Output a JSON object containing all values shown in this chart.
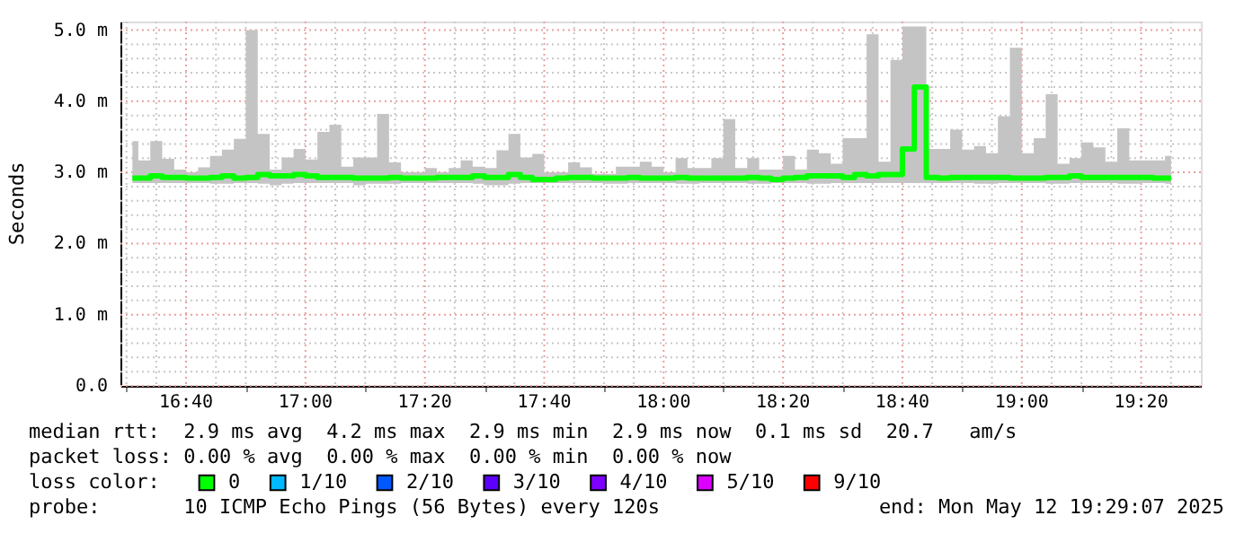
{
  "chart_data": {
    "type": "step",
    "ylabel": "Seconds",
    "x": [
      "2025-05-12T16:31",
      "2025-05-12T16:33",
      "2025-05-12T16:35",
      "2025-05-12T16:37",
      "2025-05-12T16:39",
      "2025-05-12T16:41",
      "2025-05-12T16:43",
      "2025-05-12T16:45",
      "2025-05-12T16:47",
      "2025-05-12T16:49",
      "2025-05-12T16:51",
      "2025-05-12T16:53",
      "2025-05-12T16:55",
      "2025-05-12T16:57",
      "2025-05-12T16:59",
      "2025-05-12T17:01",
      "2025-05-12T17:03",
      "2025-05-12T17:05",
      "2025-05-12T17:07",
      "2025-05-12T17:09",
      "2025-05-12T17:11",
      "2025-05-12T17:13",
      "2025-05-12T17:15",
      "2025-05-12T17:17",
      "2025-05-12T17:19",
      "2025-05-12T17:21",
      "2025-05-12T17:23",
      "2025-05-12T17:25",
      "2025-05-12T17:27",
      "2025-05-12T17:29",
      "2025-05-12T17:31",
      "2025-05-12T17:33",
      "2025-05-12T17:35",
      "2025-05-12T17:37",
      "2025-05-12T17:39",
      "2025-05-12T17:41",
      "2025-05-12T17:43",
      "2025-05-12T17:45",
      "2025-05-12T17:47",
      "2025-05-12T17:49",
      "2025-05-12T17:51",
      "2025-05-12T17:53",
      "2025-05-12T17:55",
      "2025-05-12T17:57",
      "2025-05-12T17:59",
      "2025-05-12T18:01",
      "2025-05-12T18:03",
      "2025-05-12T18:05",
      "2025-05-12T18:07",
      "2025-05-12T18:09",
      "2025-05-12T18:11",
      "2025-05-12T18:13",
      "2025-05-12T18:15",
      "2025-05-12T18:17",
      "2025-05-12T18:19",
      "2025-05-12T18:21",
      "2025-05-12T18:23",
      "2025-05-12T18:25",
      "2025-05-12T18:27",
      "2025-05-12T18:29",
      "2025-05-12T18:31",
      "2025-05-12T18:33",
      "2025-05-12T18:35",
      "2025-05-12T18:37",
      "2025-05-12T18:39",
      "2025-05-12T18:41",
      "2025-05-12T18:43",
      "2025-05-12T18:45",
      "2025-05-12T18:47",
      "2025-05-12T18:49",
      "2025-05-12T18:51",
      "2025-05-12T18:53",
      "2025-05-12T18:55",
      "2025-05-12T18:57",
      "2025-05-12T18:59",
      "2025-05-12T19:01",
      "2025-05-12T19:03",
      "2025-05-12T19:05",
      "2025-05-12T19:07",
      "2025-05-12T19:09",
      "2025-05-12T19:11",
      "2025-05-12T19:13",
      "2025-05-12T19:15",
      "2025-05-12T19:17",
      "2025-05-12T19:19",
      "2025-05-12T19:21",
      "2025-05-12T19:23",
      "2025-05-12T19:25"
    ],
    "series": [
      {
        "name": "0",
        "color": "#00ff00",
        "values": [
          2.92,
          2.92,
          2.95,
          2.93,
          2.93,
          2.92,
          2.92,
          2.93,
          2.95,
          2.92,
          2.93,
          2.97,
          2.95,
          2.95,
          2.97,
          2.95,
          2.93,
          2.93,
          2.93,
          2.92,
          2.92,
          2.92,
          2.93,
          2.92,
          2.92,
          2.92,
          2.93,
          2.93,
          2.93,
          2.95,
          2.93,
          2.93,
          2.97,
          2.93,
          2.9,
          2.9,
          2.92,
          2.93,
          2.93,
          2.92,
          2.92,
          2.92,
          2.93,
          2.92,
          2.92,
          2.92,
          2.93,
          2.92,
          2.92,
          2.92,
          2.92,
          2.92,
          2.93,
          2.92,
          2.9,
          2.92,
          2.93,
          2.95,
          2.95,
          2.95,
          2.93,
          2.97,
          2.95,
          2.97,
          2.97,
          3.33,
          4.2,
          2.93,
          2.92,
          2.93,
          2.93,
          2.93,
          2.93,
          2.93,
          2.92,
          2.92,
          2.92,
          2.93,
          2.93,
          2.95,
          2.93,
          2.93,
          2.93,
          2.93,
          2.93,
          2.93,
          2.92,
          2.92
        ],
        "lower": [
          2.85,
          2.85,
          2.85,
          2.85,
          2.85,
          2.85,
          2.85,
          2.84,
          2.84,
          2.85,
          2.85,
          2.84,
          2.82,
          2.84,
          2.85,
          2.85,
          2.85,
          2.85,
          2.85,
          2.82,
          2.84,
          2.84,
          2.84,
          2.85,
          2.85,
          2.85,
          2.85,
          2.85,
          2.85,
          2.84,
          2.82,
          2.82,
          2.84,
          2.85,
          2.85,
          2.85,
          2.85,
          2.85,
          2.85,
          2.85,
          2.84,
          2.84,
          2.85,
          2.85,
          2.85,
          2.85,
          2.84,
          2.84,
          2.85,
          2.85,
          2.85,
          2.85,
          2.84,
          2.84,
          2.85,
          2.85,
          2.85,
          2.84,
          2.84,
          2.85,
          2.85,
          2.85,
          2.85,
          2.85,
          2.85,
          2.85,
          2.85,
          2.85,
          2.85,
          2.85,
          2.85,
          2.84,
          2.84,
          2.85,
          2.85,
          2.85,
          2.85,
          2.84,
          2.84,
          2.85,
          2.85,
          2.85,
          2.85,
          2.84,
          2.84,
          2.85,
          2.85,
          2.84
        ],
        "upper": [
          3.44,
          3.17,
          3.44,
          3.19,
          3.04,
          3.0,
          3.07,
          3.23,
          3.32,
          3.47,
          5.0,
          3.54,
          3.04,
          3.21,
          3.33,
          3.18,
          3.57,
          3.67,
          3.08,
          3.21,
          3.21,
          3.82,
          3.14,
          3.0,
          3.0,
          3.06,
          3.0,
          3.06,
          3.17,
          3.08,
          3.06,
          3.31,
          3.54,
          3.21,
          3.26,
          3.0,
          3.0,
          3.14,
          3.07,
          2.98,
          2.98,
          3.08,
          3.08,
          3.15,
          3.08,
          3.0,
          3.2,
          3.06,
          3.06,
          3.2,
          3.75,
          3.06,
          3.2,
          3.04,
          3.04,
          3.23,
          3.04,
          3.32,
          3.27,
          3.12,
          3.48,
          3.48,
          4.94,
          3.15,
          4.58,
          5.05,
          5.05,
          3.33,
          3.33,
          3.6,
          3.32,
          3.37,
          3.27,
          3.79,
          4.75,
          3.27,
          3.48,
          4.1,
          3.12,
          3.2,
          3.42,
          3.35,
          3.15,
          3.62,
          3.17,
          3.17,
          3.17,
          3.23
        ]
      },
      {
        "name": "1/10",
        "color": "#00b8ff",
        "values": [
          null,
          null,
          null,
          null,
          null,
          null,
          null,
          null,
          null,
          null,
          null,
          null,
          null,
          null,
          null,
          null,
          null,
          null,
          null,
          null,
          null,
          null,
          null,
          null,
          null,
          null,
          null,
          null,
          null,
          null,
          null,
          null,
          null,
          null,
          null,
          null,
          null,
          null,
          null,
          null,
          null,
          null,
          null,
          null,
          null,
          null,
          null,
          null,
          null,
          null,
          null,
          null,
          null,
          null,
          null,
          null,
          null,
          null,
          null,
          null,
          null,
          null,
          null,
          null,
          null,
          null,
          null,
          null,
          null,
          null,
          null,
          null,
          null,
          null,
          null,
          null,
          null,
          null,
          null,
          null,
          null,
          null,
          null,
          null,
          null,
          null,
          null,
          null
        ]
      },
      {
        "name": "2/10",
        "color": "#0059ff",
        "values": [
          null,
          null,
          null,
          null,
          null,
          null,
          null,
          null,
          null,
          null,
          null,
          null,
          null,
          null,
          null,
          null,
          null,
          null,
          null,
          null,
          null,
          null,
          null,
          null,
          null,
          null,
          null,
          null,
          null,
          null,
          null,
          null,
          null,
          null,
          null,
          null,
          null,
          null,
          null,
          null,
          null,
          null,
          null,
          null,
          null,
          null,
          null,
          null,
          null,
          null,
          null,
          null,
          null,
          null,
          null,
          null,
          null,
          null,
          null,
          null,
          null,
          null,
          null,
          null,
          null,
          null,
          null,
          null,
          null,
          null,
          null,
          null,
          null,
          null,
          null,
          null,
          null,
          null,
          null,
          null,
          null,
          null,
          null,
          null,
          null,
          null,
          null,
          null
        ]
      },
      {
        "name": "3/10",
        "color": "#5e00ff",
        "values": [
          null,
          null,
          null,
          null,
          null,
          null,
          null,
          null,
          null,
          null,
          null,
          null,
          null,
          null,
          null,
          null,
          null,
          null,
          null,
          null,
          null,
          null,
          null,
          null,
          null,
          null,
          null,
          null,
          null,
          null,
          null,
          null,
          null,
          null,
          null,
          null,
          null,
          null,
          null,
          null,
          null,
          null,
          null,
          null,
          null,
          null,
          null,
          null,
          null,
          null,
          null,
          null,
          null,
          null,
          null,
          null,
          null,
          null,
          null,
          null,
          null,
          null,
          null,
          null,
          null,
          null,
          null,
          null,
          null,
          null,
          null,
          null,
          null,
          null,
          null,
          null,
          null,
          null,
          null,
          null,
          null,
          null,
          null,
          null,
          null,
          null,
          null,
          null
        ]
      },
      {
        "name": "4/10",
        "color": "#7e00ff",
        "values": [
          null,
          null,
          null,
          null,
          null,
          null,
          null,
          null,
          null,
          null,
          null,
          null,
          null,
          null,
          null,
          null,
          null,
          null,
          null,
          null,
          null,
          null,
          null,
          null,
          null,
          null,
          null,
          null,
          null,
          null,
          null,
          null,
          null,
          null,
          null,
          null,
          null,
          null,
          null,
          null,
          null,
          null,
          null,
          null,
          null,
          null,
          null,
          null,
          null,
          null,
          null,
          null,
          null,
          null,
          null,
          null,
          null,
          null,
          null,
          null,
          null,
          null,
          null,
          null,
          null,
          null,
          null,
          null,
          null,
          null,
          null,
          null,
          null,
          null,
          null,
          null,
          null,
          null,
          null,
          null,
          null,
          null,
          null,
          null,
          null,
          null,
          null,
          null
        ]
      },
      {
        "name": "5/10",
        "color": "#dd00ff",
        "values": [
          null,
          null,
          null,
          null,
          null,
          null,
          null,
          null,
          null,
          null,
          null,
          null,
          null,
          null,
          null,
          null,
          null,
          null,
          null,
          null,
          null,
          null,
          null,
          null,
          null,
          null,
          null,
          null,
          null,
          null,
          null,
          null,
          null,
          null,
          null,
          null,
          null,
          null,
          null,
          null,
          null,
          null,
          null,
          null,
          null,
          null,
          null,
          null,
          null,
          null,
          null,
          null,
          null,
          null,
          null,
          null,
          null,
          null,
          null,
          null,
          null,
          null,
          null,
          null,
          null,
          null,
          null,
          null,
          null,
          null,
          null,
          null,
          null,
          null,
          null,
          null,
          null,
          null,
          null,
          null,
          null,
          null,
          null,
          null,
          null,
          null,
          null,
          null
        ]
      },
      {
        "name": "9/10",
        "color": "#ff0000",
        "values": [
          null,
          null,
          null,
          null,
          null,
          null,
          null,
          null,
          null,
          null,
          null,
          null,
          null,
          null,
          null,
          null,
          null,
          null,
          null,
          null,
          null,
          null,
          null,
          null,
          null,
          null,
          null,
          null,
          null,
          null,
          null,
          null,
          null,
          null,
          null,
          null,
          null,
          null,
          null,
          null,
          null,
          null,
          null,
          null,
          null,
          null,
          null,
          null,
          null,
          null,
          null,
          null,
          null,
          null,
          null,
          null,
          null,
          null,
          null,
          null,
          null,
          null,
          null,
          null,
          null,
          null,
          null,
          null,
          null,
          null,
          null,
          null,
          null,
          null,
          null,
          null,
          null,
          null,
          null,
          null,
          null,
          null,
          null,
          null,
          null,
          null,
          null,
          null
        ]
      }
    ],
    "legend_title": "loss color:",
    "legend": "bottom",
    "xlim": [
      "2025-05-12T16:29",
      "2025-05-12T19:30"
    ],
    "xticks": [
      {
        "value": "2025-05-12T16:30",
        "label": null
      },
      {
        "value": "2025-05-12T16:35",
        "label": null
      },
      {
        "value": "2025-05-12T16:40",
        "label": "16:40"
      },
      {
        "value": "2025-05-12T16:45",
        "label": null
      },
      {
        "value": "2025-05-12T16:50",
        "label": null
      },
      {
        "value": "2025-05-12T16:55",
        "label": null
      },
      {
        "value": "2025-05-12T17:00",
        "label": "17:00"
      },
      {
        "value": "2025-05-12T17:05",
        "label": null
      },
      {
        "value": "2025-05-12T17:10",
        "label": null
      },
      {
        "value": "2025-05-12T17:15",
        "label": null
      },
      {
        "value": "2025-05-12T17:20",
        "label": "17:20"
      },
      {
        "value": "2025-05-12T17:25",
        "label": null
      },
      {
        "value": "2025-05-12T17:30",
        "label": null
      },
      {
        "value": "2025-05-12T17:35",
        "label": null
      },
      {
        "value": "2025-05-12T17:40",
        "label": "17:40"
      },
      {
        "value": "2025-05-12T17:45",
        "label": null
      },
      {
        "value": "2025-05-12T17:50",
        "label": null
      },
      {
        "value": "2025-05-12T17:55",
        "label": null
      },
      {
        "value": "2025-05-12T18:00",
        "label": "18:00"
      },
      {
        "value": "2025-05-12T18:05",
        "label": null
      },
      {
        "value": "2025-05-12T18:10",
        "label": null
      },
      {
        "value": "2025-05-12T18:15",
        "label": null
      },
      {
        "value": "2025-05-12T18:20",
        "label": "18:20"
      },
      {
        "value": "2025-05-12T18:25",
        "label": null
      },
      {
        "value": "2025-05-12T18:30",
        "label": null
      },
      {
        "value": "2025-05-12T18:35",
        "label": null
      },
      {
        "value": "2025-05-12T18:40",
        "label": "18:40"
      },
      {
        "value": "2025-05-12T18:45",
        "label": null
      },
      {
        "value": "2025-05-12T18:50",
        "label": null
      },
      {
        "value": "2025-05-12T18:55",
        "label": null
      },
      {
        "value": "2025-05-12T19:00",
        "label": "19:00"
      },
      {
        "value": "2025-05-12T19:05",
        "label": null
      },
      {
        "value": "2025-05-12T19:10",
        "label": null
      },
      {
        "value": "2025-05-12T19:15",
        "label": null
      },
      {
        "value": "2025-05-12T19:20",
        "label": "19:20"
      },
      {
        "value": "2025-05-12T19:25",
        "label": null
      }
    ],
    "ylim": [
      0,
      5.12
    ],
    "yticks": [
      {
        "value": 0,
        "label": "0.0"
      },
      {
        "value": 0.2,
        "label": null
      },
      {
        "value": 0.4,
        "label": null
      },
      {
        "value": 0.6,
        "label": null
      },
      {
        "value": 0.8,
        "label": null
      },
      {
        "value": 1,
        "label": "1.0 m"
      },
      {
        "value": 1.2,
        "label": null
      },
      {
        "value": 1.4,
        "label": null
      },
      {
        "value": 1.6,
        "label": null
      },
      {
        "value": 1.8,
        "label": null
      },
      {
        "value": 2,
        "label": "2.0 m"
      },
      {
        "value": 2.2,
        "label": null
      },
      {
        "value": 2.4,
        "label": null
      },
      {
        "value": 2.6,
        "label": null
      },
      {
        "value": 2.8,
        "label": null
      },
      {
        "value": 3,
        "label": "3.0 m"
      },
      {
        "value": 3.2,
        "label": null
      },
      {
        "value": 3.4,
        "label": null
      },
      {
        "value": 3.6,
        "label": null
      },
      {
        "value": 3.8,
        "label": null
      },
      {
        "value": 4,
        "label": "4.0 m"
      },
      {
        "value": 4.2,
        "label": null
      },
      {
        "value": 4.4,
        "label": null
      },
      {
        "value": 4.6,
        "label": null
      },
      {
        "value": 4.8,
        "label": null
      },
      {
        "value": 5,
        "label": "5.0 m"
      }
    ],
    "grid": true,
    "line_style": "solid",
    "marker": "none",
    "annotations": [
      "median rtt:  2.9 ms avg  4.2 ms max  2.9 ms min  2.9 ms now  0.1 ms sd  20.7   am/s",
      "packet loss: 0.00 % avg  0.00 % max  0.00 % min  0.00 % now",
      "probe:       10 ICMP Echo Pings (56 Bytes) every 120s",
      "end: Mon May 12 19:29:07 2025"
    ]
  }
}
